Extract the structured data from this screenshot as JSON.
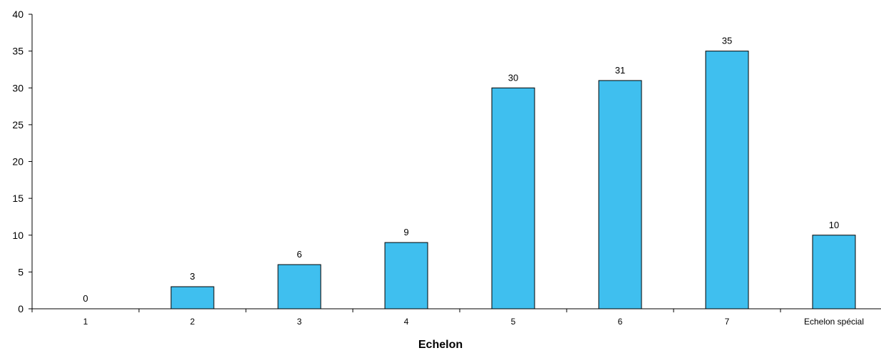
{
  "chart_data": {
    "type": "bar",
    "categories": [
      "1",
      "2",
      "3",
      "4",
      "5",
      "6",
      "7",
      "Echelon spécial"
    ],
    "values": [
      0,
      3,
      6,
      9,
      30,
      31,
      35,
      10
    ],
    "data_labels": [
      "0",
      "3",
      "6",
      "9",
      "30",
      "31",
      "35",
      "10"
    ],
    "title": "",
    "xlabel": "Echelon",
    "ylabel": "",
    "ylim": [
      0,
      40
    ],
    "yticks": [
      0,
      5,
      10,
      15,
      20,
      25,
      30,
      35,
      40
    ],
    "grid": false,
    "legend": "none",
    "bar_color": "#3FBFEF",
    "bar_edge_color": "#000000"
  }
}
